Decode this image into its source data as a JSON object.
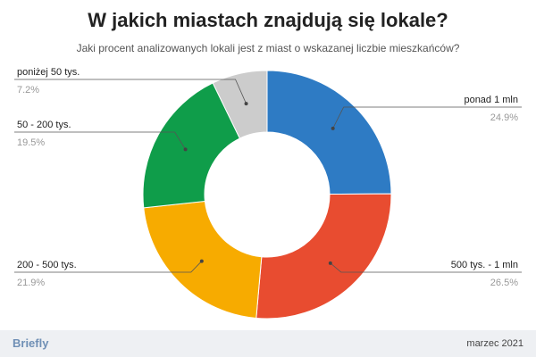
{
  "title": "W jakich miastach znajdują się lokale?",
  "subtitle": "Jaki procent analizowanych lokali jest z miast o wskazanej liczbie mieszkańców?",
  "footer": {
    "brand": "Briefly",
    "date": "marzec 2021"
  },
  "chart_data": {
    "type": "pie",
    "donut": true,
    "title": "W jakich miastach znajdują się lokale?",
    "subtitle": "Jaki procent analizowanych lokali jest z miast o wskazanej liczbie mieszkańców?",
    "slices": [
      {
        "label": "ponad 1 mln",
        "value": 24.9,
        "display": "24.9%",
        "color": "#2e7bc4"
      },
      {
        "label": "500 tys. - 1 mln",
        "value": 26.5,
        "display": "26.5%",
        "color": "#e84c30"
      },
      {
        "label": "200 - 500 tys.",
        "value": 21.9,
        "display": "21.9%",
        "color": "#f7ab00"
      },
      {
        "label": "50 - 200 tys.",
        "value": 19.5,
        "display": "19.5%",
        "color": "#0f9d4a"
      },
      {
        "label": "poniżej 50 tys.",
        "value": 7.2,
        "display": "7.2%",
        "color": "#cccccc"
      }
    ],
    "legend": "outside-labels"
  }
}
